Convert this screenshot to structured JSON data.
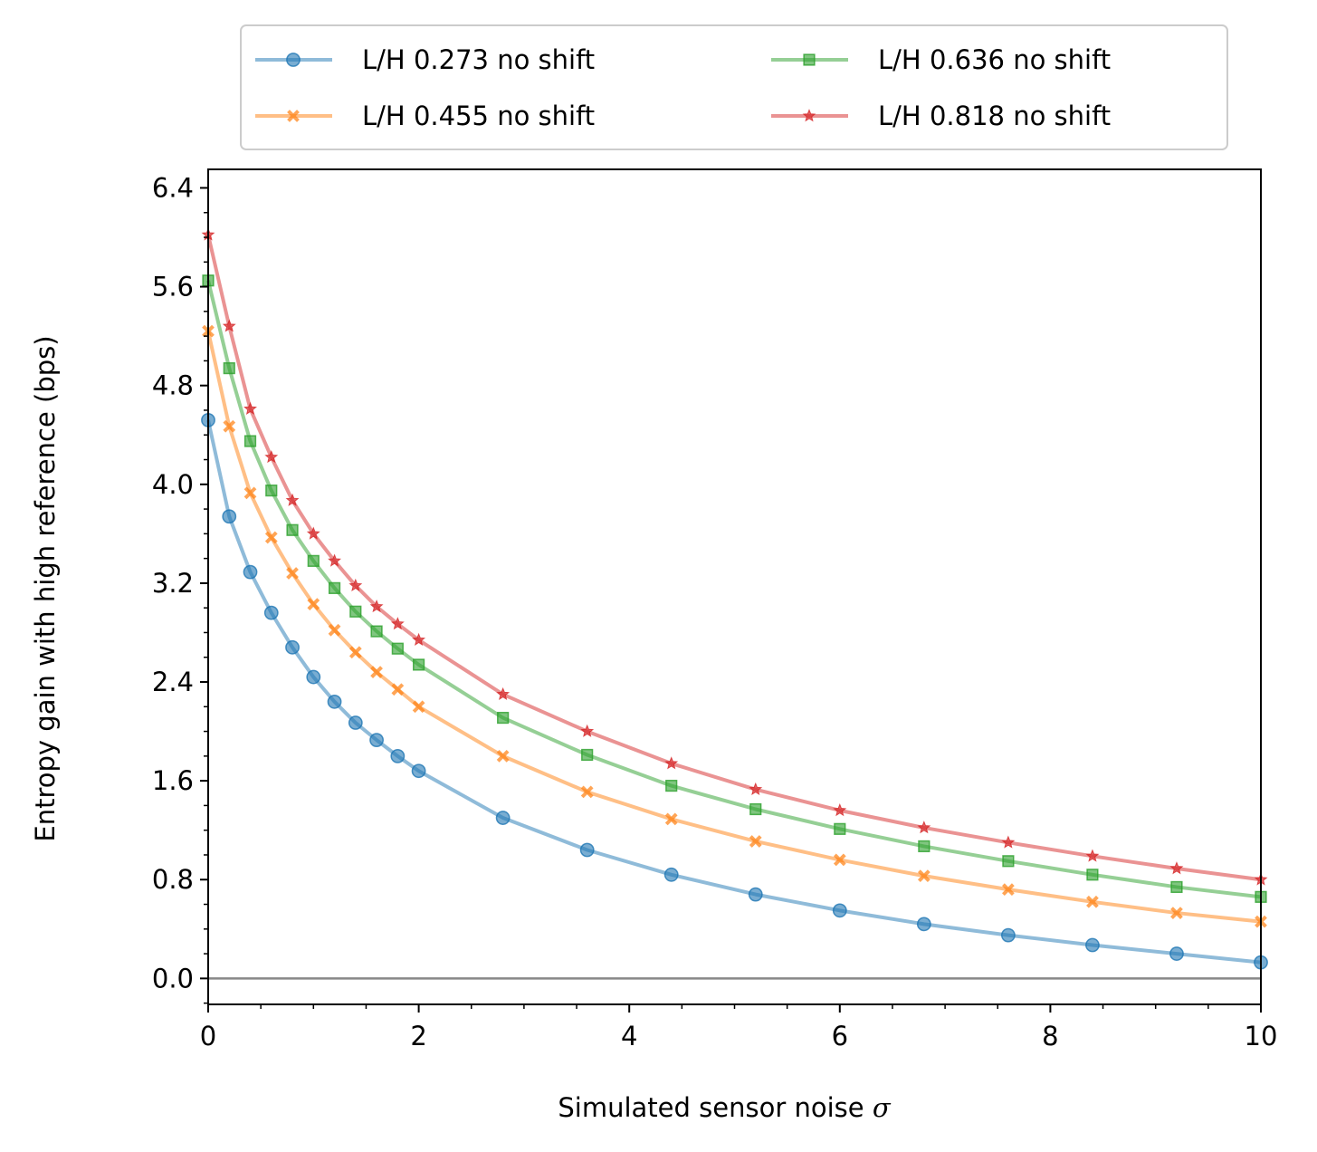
{
  "chart_data": {
    "type": "line",
    "xlabel": "Simulated sensor noise",
    "xlabel_symbol": "σ",
    "ylabel": "Entropy gain with high reference (bps)",
    "xlim": [
      0,
      10
    ],
    "ylim": [
      -0.21,
      6.55
    ],
    "x_ticks": [
      0,
      2,
      4,
      6,
      8,
      10
    ],
    "x_tick_labels": [
      "0",
      "2",
      "4",
      "6",
      "8",
      "10"
    ],
    "y_ticks": [
      0.0,
      0.8,
      1.6,
      2.4,
      3.2,
      4.0,
      4.8,
      5.6,
      6.4
    ],
    "y_tick_labels": [
      "0.0",
      "0.8",
      "1.6",
      "2.4",
      "3.2",
      "4.0",
      "4.8",
      "5.6",
      "6.4"
    ],
    "grid": false,
    "legend_position": "top-center",
    "reference_line": {
      "y": 0,
      "color": "#888888"
    },
    "x": [
      0,
      0.2,
      0.4,
      0.6,
      0.8,
      1.0,
      1.2,
      1.4,
      1.6,
      1.8,
      2.0,
      2.8,
      3.6,
      4.4,
      5.2,
      6.0,
      6.8,
      7.6,
      8.4,
      9.2,
      10.0
    ],
    "series": [
      {
        "name": "L/H 0.273 no shift",
        "color": "#1f77b4",
        "marker": "circle",
        "values": [
          4.52,
          3.74,
          3.29,
          2.96,
          2.68,
          2.44,
          2.24,
          2.07,
          1.93,
          1.8,
          1.68,
          1.3,
          1.04,
          0.84,
          0.68,
          0.55,
          0.44,
          0.35,
          0.27,
          0.2,
          0.13
        ]
      },
      {
        "name": "L/H 0.455 no shift",
        "color": "#ff7f0e",
        "marker": "x",
        "values": [
          5.24,
          4.47,
          3.93,
          3.57,
          3.28,
          3.03,
          2.82,
          2.64,
          2.48,
          2.34,
          2.2,
          1.8,
          1.51,
          1.29,
          1.11,
          0.96,
          0.83,
          0.72,
          0.62,
          0.53,
          0.46
        ]
      },
      {
        "name": "L/H 0.636 no shift",
        "color": "#2ca02c",
        "marker": "square",
        "values": [
          5.65,
          4.94,
          4.35,
          3.95,
          3.63,
          3.38,
          3.16,
          2.97,
          2.81,
          2.67,
          2.54,
          2.11,
          1.81,
          1.56,
          1.37,
          1.21,
          1.07,
          0.95,
          0.84,
          0.74,
          0.66
        ]
      },
      {
        "name": "L/H 0.818 no shift",
        "color": "#d62728",
        "marker": "star",
        "values": [
          6.02,
          5.28,
          4.61,
          4.22,
          3.87,
          3.6,
          3.38,
          3.18,
          3.01,
          2.87,
          2.74,
          2.3,
          2.0,
          1.74,
          1.53,
          1.36,
          1.22,
          1.1,
          0.99,
          0.89,
          0.8
        ]
      }
    ]
  }
}
